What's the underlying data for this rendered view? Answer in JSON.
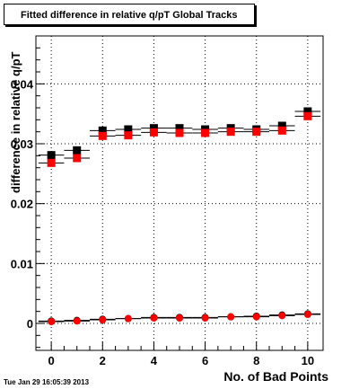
{
  "chart_data": {
    "type": "scatter",
    "title": "Fitted difference in relative q/pT  Global Tracks",
    "xlabel": "No. of Bad Points",
    "ylabel": "difference in relative q/pT",
    "xlim": [
      -0.6,
      10.6
    ],
    "ylim": [
      -0.0045,
      0.048
    ],
    "x_ticks": [
      0,
      2,
      4,
      6,
      8,
      10
    ],
    "y_ticks": [
      0,
      0.01,
      0.02,
      0.03,
      0.04
    ],
    "y_tick_labels": [
      "0",
      "0.01",
      "0.02",
      "0.03",
      "0.04"
    ],
    "grid": true,
    "series": [
      {
        "color": "#000000",
        "marker": "square",
        "x": [
          0,
          1,
          2,
          3,
          4,
          5,
          6,
          7,
          8,
          9,
          10
        ],
        "y": [
          0.0281,
          0.0289,
          0.0322,
          0.0324,
          0.0326,
          0.0326,
          0.0324,
          0.0326,
          0.0324,
          0.033,
          0.0354
        ]
      },
      {
        "color": "#ff0000",
        "marker": "square",
        "x": [
          0,
          1,
          2,
          3,
          4,
          5,
          6,
          7,
          8,
          9,
          10
        ],
        "y": [
          0.0268,
          0.0276,
          0.0313,
          0.0314,
          0.0319,
          0.0318,
          0.0318,
          0.032,
          0.032,
          0.0322,
          0.0346
        ]
      },
      {
        "color": "#000000",
        "marker": "circle",
        "x": [
          0,
          1,
          2,
          3,
          4,
          5,
          6,
          7,
          8,
          9,
          10
        ],
        "y": [
          0.0004,
          0.0005,
          0.0007,
          0.0008,
          0.001,
          0.001,
          0.001,
          0.0011,
          0.0012,
          0.0014,
          0.0016
        ]
      },
      {
        "color": "#ff0000",
        "marker": "circle",
        "x": [
          0,
          1,
          2,
          3,
          4,
          5,
          6,
          7,
          8,
          9,
          10
        ],
        "y": [
          0.0003,
          0.0004,
          0.0006,
          0.0008,
          0.0009,
          0.0009,
          0.0009,
          0.0011,
          0.0011,
          0.0013,
          0.0015
        ]
      }
    ]
  },
  "footer": {
    "date": "Tue Jan 29 16:05:39 2013"
  }
}
